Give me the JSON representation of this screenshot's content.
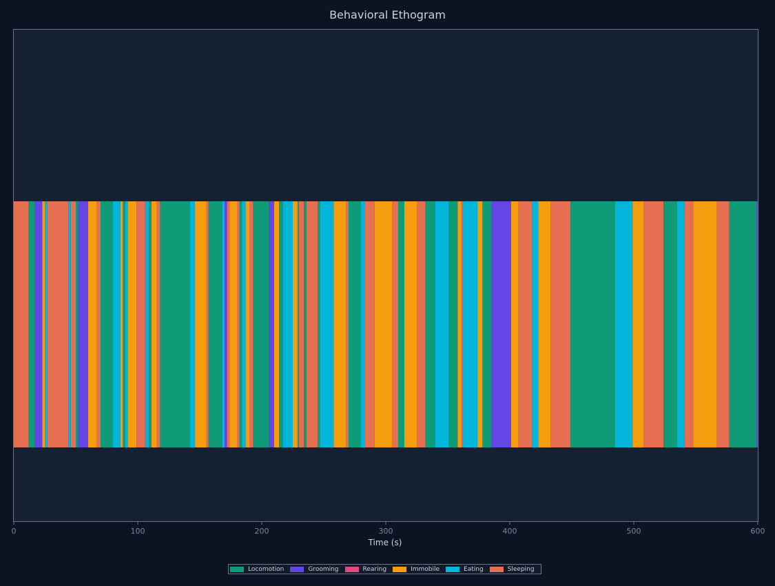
{
  "chart_data": {
    "type": "ethogram",
    "title": "Behavioral Ethogram",
    "xlabel": "Time (s)",
    "xlim": [
      0,
      600
    ],
    "xticks": [
      0,
      100,
      200,
      300,
      400,
      500,
      600
    ],
    "legend_position": "bottom-center",
    "behaviors": [
      {
        "name": "Locomotion",
        "color": "#109b78"
      },
      {
        "name": "Grooming",
        "color": "#6346e5"
      },
      {
        "name": "Rearing",
        "color": "#e0487e"
      },
      {
        "name": "Immobile",
        "color": "#f59d0e"
      },
      {
        "name": "Eating",
        "color": "#03b5db"
      },
      {
        "name": "Sleeping",
        "color": "#e76f51"
      }
    ],
    "segments": [
      {
        "start": 0,
        "end": 12,
        "behavior": "Sleeping"
      },
      {
        "start": 12,
        "end": 17,
        "behavior": "Locomotion"
      },
      {
        "start": 17,
        "end": 23,
        "behavior": "Grooming"
      },
      {
        "start": 23,
        "end": 25,
        "behavior": "Immobile"
      },
      {
        "start": 25,
        "end": 27,
        "behavior": "Eating"
      },
      {
        "start": 27,
        "end": 44,
        "behavior": "Sleeping"
      },
      {
        "start": 44,
        "end": 46,
        "behavior": "Eating"
      },
      {
        "start": 46,
        "end": 50,
        "behavior": "Sleeping"
      },
      {
        "start": 50,
        "end": 52,
        "behavior": "Locomotion"
      },
      {
        "start": 52,
        "end": 60,
        "behavior": "Grooming"
      },
      {
        "start": 60,
        "end": 67,
        "behavior": "Immobile"
      },
      {
        "start": 67,
        "end": 70,
        "behavior": "Sleeping"
      },
      {
        "start": 70,
        "end": 80,
        "behavior": "Locomotion"
      },
      {
        "start": 80,
        "end": 86,
        "behavior": "Eating"
      },
      {
        "start": 86,
        "end": 88,
        "behavior": "Immobile"
      },
      {
        "start": 88,
        "end": 90,
        "behavior": "Locomotion"
      },
      {
        "start": 90,
        "end": 92,
        "behavior": "Eating"
      },
      {
        "start": 92,
        "end": 99,
        "behavior": "Immobile"
      },
      {
        "start": 99,
        "end": 106,
        "behavior": "Sleeping"
      },
      {
        "start": 106,
        "end": 109,
        "behavior": "Eating"
      },
      {
        "start": 109,
        "end": 111,
        "behavior": "Locomotion"
      },
      {
        "start": 111,
        "end": 115,
        "behavior": "Immobile"
      },
      {
        "start": 115,
        "end": 118,
        "behavior": "Sleeping"
      },
      {
        "start": 118,
        "end": 142,
        "behavior": "Locomotion"
      },
      {
        "start": 142,
        "end": 146,
        "behavior": "Eating"
      },
      {
        "start": 146,
        "end": 155,
        "behavior": "Immobile"
      },
      {
        "start": 155,
        "end": 157,
        "behavior": "Sleeping"
      },
      {
        "start": 157,
        "end": 168,
        "behavior": "Locomotion"
      },
      {
        "start": 168,
        "end": 170,
        "behavior": "Eating"
      },
      {
        "start": 170,
        "end": 172,
        "behavior": "Grooming"
      },
      {
        "start": 172,
        "end": 174,
        "behavior": "Sleeping"
      },
      {
        "start": 174,
        "end": 180,
        "behavior": "Immobile"
      },
      {
        "start": 180,
        "end": 182,
        "behavior": "Sleeping"
      },
      {
        "start": 182,
        "end": 184,
        "behavior": "Locomotion"
      },
      {
        "start": 184,
        "end": 187,
        "behavior": "Eating"
      },
      {
        "start": 187,
        "end": 190,
        "behavior": "Immobile"
      },
      {
        "start": 190,
        "end": 193,
        "behavior": "Sleeping"
      },
      {
        "start": 193,
        "end": 206,
        "behavior": "Locomotion"
      },
      {
        "start": 206,
        "end": 210,
        "behavior": "Grooming"
      },
      {
        "start": 210,
        "end": 214,
        "behavior": "Immobile"
      },
      {
        "start": 214,
        "end": 217,
        "behavior": "Locomotion"
      },
      {
        "start": 217,
        "end": 225,
        "behavior": "Eating"
      },
      {
        "start": 225,
        "end": 229,
        "behavior": "Immobile"
      },
      {
        "start": 229,
        "end": 230,
        "behavior": "Locomotion"
      },
      {
        "start": 230,
        "end": 234,
        "behavior": "Sleeping"
      },
      {
        "start": 234,
        "end": 236,
        "behavior": "Locomotion"
      },
      {
        "start": 236,
        "end": 245,
        "behavior": "Sleeping"
      },
      {
        "start": 245,
        "end": 247,
        "behavior": "Locomotion"
      },
      {
        "start": 247,
        "end": 258,
        "behavior": "Eating"
      },
      {
        "start": 258,
        "end": 268,
        "behavior": "Immobile"
      },
      {
        "start": 268,
        "end": 270,
        "behavior": "Sleeping"
      },
      {
        "start": 270,
        "end": 280,
        "behavior": "Locomotion"
      },
      {
        "start": 280,
        "end": 283,
        "behavior": "Eating"
      },
      {
        "start": 283,
        "end": 291,
        "behavior": "Sleeping"
      },
      {
        "start": 291,
        "end": 305,
        "behavior": "Immobile"
      },
      {
        "start": 305,
        "end": 310,
        "behavior": "Sleeping"
      },
      {
        "start": 310,
        "end": 315,
        "behavior": "Locomotion"
      },
      {
        "start": 315,
        "end": 325,
        "behavior": "Immobile"
      },
      {
        "start": 325,
        "end": 332,
        "behavior": "Sleeping"
      },
      {
        "start": 332,
        "end": 340,
        "behavior": "Locomotion"
      },
      {
        "start": 340,
        "end": 351,
        "behavior": "Eating"
      },
      {
        "start": 351,
        "end": 358,
        "behavior": "Locomotion"
      },
      {
        "start": 358,
        "end": 361,
        "behavior": "Immobile"
      },
      {
        "start": 361,
        "end": 362,
        "behavior": "Sleeping"
      },
      {
        "start": 362,
        "end": 374,
        "behavior": "Eating"
      },
      {
        "start": 374,
        "end": 378,
        "behavior": "Immobile"
      },
      {
        "start": 378,
        "end": 385,
        "behavior": "Locomotion"
      },
      {
        "start": 385,
        "end": 401,
        "behavior": "Grooming"
      },
      {
        "start": 401,
        "end": 407,
        "behavior": "Immobile"
      },
      {
        "start": 407,
        "end": 418,
        "behavior": "Sleeping"
      },
      {
        "start": 418,
        "end": 423,
        "behavior": "Eating"
      },
      {
        "start": 423,
        "end": 433,
        "behavior": "Immobile"
      },
      {
        "start": 433,
        "end": 449,
        "behavior": "Sleeping"
      },
      {
        "start": 449,
        "end": 485,
        "behavior": "Locomotion"
      },
      {
        "start": 485,
        "end": 499,
        "behavior": "Eating"
      },
      {
        "start": 499,
        "end": 508,
        "behavior": "Immobile"
      },
      {
        "start": 508,
        "end": 524,
        "behavior": "Sleeping"
      },
      {
        "start": 524,
        "end": 535,
        "behavior": "Locomotion"
      },
      {
        "start": 535,
        "end": 541,
        "behavior": "Eating"
      },
      {
        "start": 541,
        "end": 548,
        "behavior": "Sleeping"
      },
      {
        "start": 548,
        "end": 567,
        "behavior": "Immobile"
      },
      {
        "start": 567,
        "end": 577,
        "behavior": "Sleeping"
      },
      {
        "start": 577,
        "end": 599,
        "behavior": "Locomotion"
      },
      {
        "start": 599,
        "end": 600,
        "behavior": "Grooming"
      }
    ]
  }
}
